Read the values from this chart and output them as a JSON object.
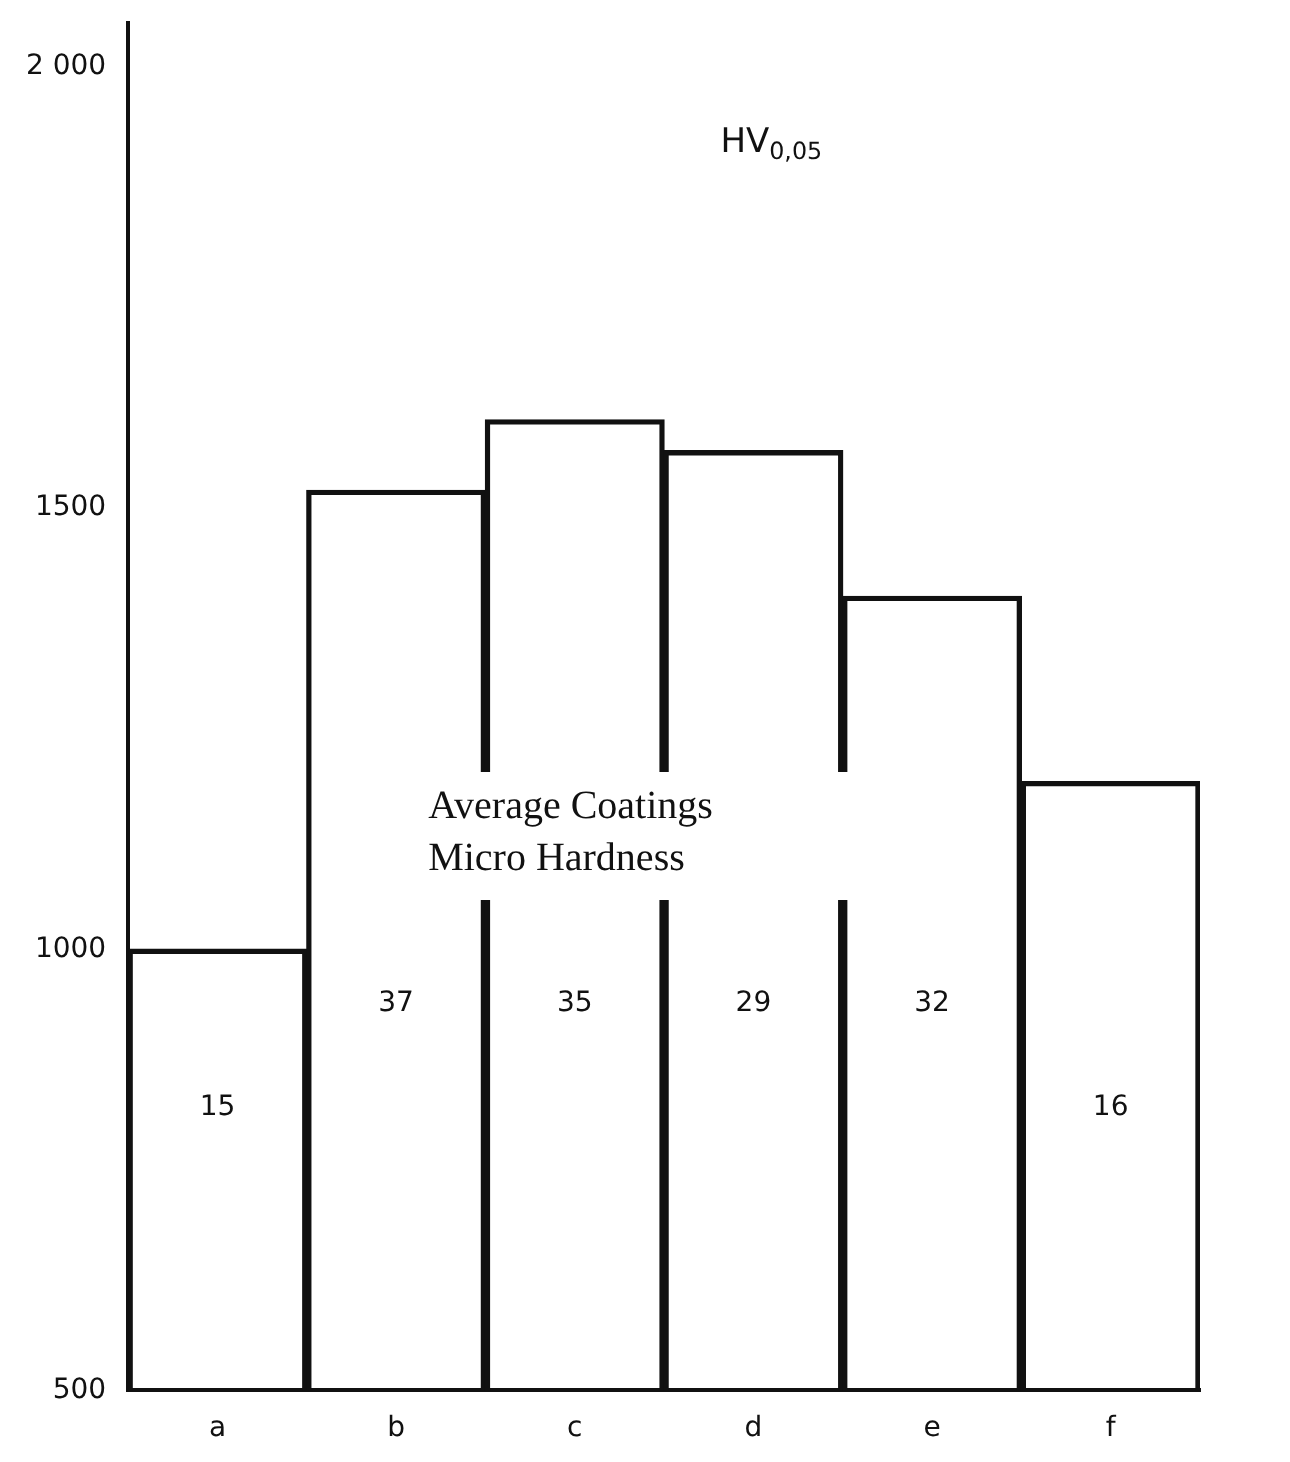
{
  "chart_data": {
    "type": "bar",
    "title": "Average Coatings\nMicro Hardness",
    "categories": [
      "a",
      "b",
      "c",
      "d",
      "e",
      "f"
    ],
    "values": [
      1000,
      1520,
      1600,
      1565,
      1400,
      1190
    ],
    "color": "#111111",
    "ylim": [
      500,
      2050
    ],
    "yticks": [
      500,
      1000,
      1500,
      {
        "value": 2000,
        "label": "2 000"
      }
    ],
    "grid": false,
    "legend": false,
    "annotations": [
      "HV$_{0,05}$",
      "15",
      "37",
      "35",
      "29",
      "32",
      "16"
    ]
  }
}
